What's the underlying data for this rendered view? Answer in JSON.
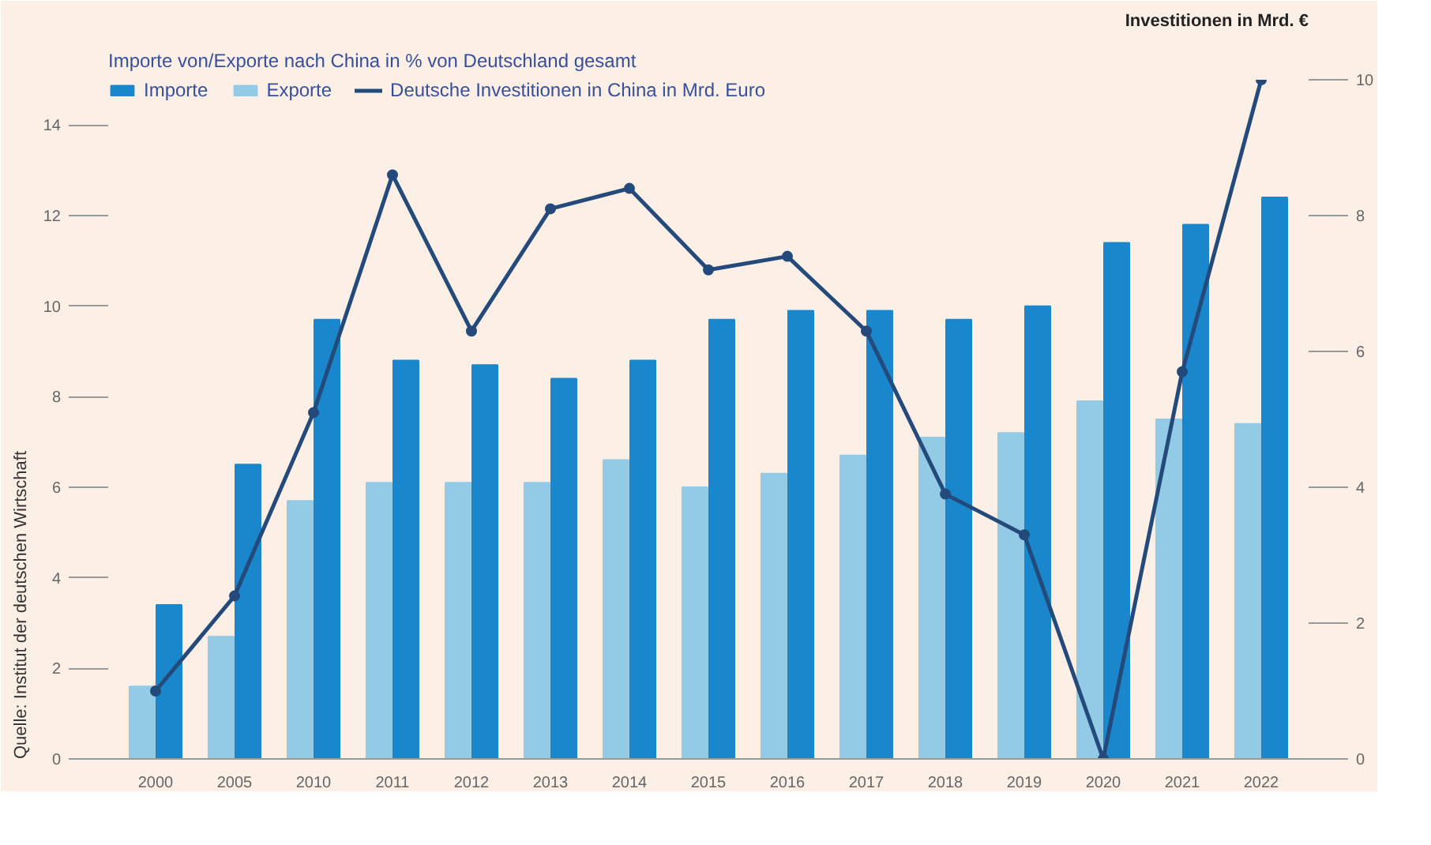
{
  "chart_data": {
    "type": "bar",
    "subtitle": "Importe von/Exporte nach China in % von Deutschland gesamt",
    "y2label": "Investitionen in Mrd. €",
    "annotations": [
      "Quelle: Institut der deutschen Wirtschaft"
    ],
    "categories": [
      "2000",
      "2005",
      "2010",
      "2011",
      "2012",
      "2013",
      "2014",
      "2015",
      "2016",
      "2017",
      "2018",
      "2019",
      "2020",
      "2021",
      "2022"
    ],
    "series": [
      {
        "name": "Importe",
        "color": "#1a87cc",
        "values": [
          3.4,
          6.5,
          9.7,
          8.8,
          8.7,
          8.4,
          8.8,
          9.7,
          9.9,
          9.9,
          9.7,
          10.0,
          11.4,
          11.8,
          12.4
        ]
      },
      {
        "name": "Exporte",
        "color": "#93cbe6",
        "values": [
          1.6,
          2.7,
          5.7,
          6.1,
          6.1,
          6.1,
          6.6,
          6.0,
          6.3,
          6.7,
          7.1,
          7.2,
          7.9,
          7.5,
          7.4
        ]
      },
      {
        "name": "Deutsche Investitionen in China in Mrd. Euro",
        "type": "line",
        "axis": "y2",
        "color": "#234a7a",
        "values": [
          1.0,
          2.4,
          5.1,
          8.6,
          6.3,
          8.1,
          8.4,
          7.2,
          7.4,
          6.3,
          3.9,
          3.3,
          0.0,
          5.7,
          10.0
        ]
      }
    ],
    "ylim": [
      0,
      15
    ],
    "yticks": [
      0,
      2,
      4,
      6,
      8,
      10,
      12,
      14
    ],
    "y2lim": [
      0,
      10
    ],
    "y2ticks": [
      0,
      2,
      4,
      6,
      8,
      10
    ],
    "grid": false,
    "legend": "top",
    "marker": "circle",
    "line_style": "solid"
  }
}
